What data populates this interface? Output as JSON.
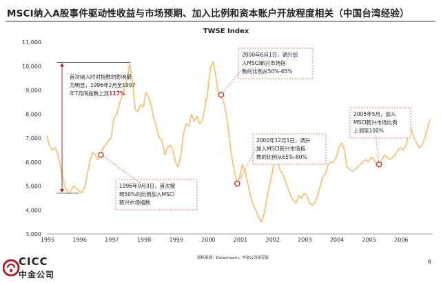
{
  "slide": {
    "title": "MSCI纳入A股事件驱动性收益与市场预期、加入比例和资本账户开放程度相关（中国台湾经验）",
    "source": "资料来源：Datastream，中金公司研究部",
    "page_number": "8"
  },
  "logo": {
    "en": "CICC",
    "zh": "中金公司",
    "accent": "#a5232b"
  },
  "colors": {
    "line": "#f6bf6c",
    "marker": "#c0392b",
    "annotation": "#e8574e",
    "bracket": "#a5232b"
  },
  "chart_data": {
    "type": "line",
    "title": "TWSE Index",
    "xlabel": "",
    "ylabel": "",
    "xlim": [
      1995.0,
      2007.0
    ],
    "ylim": [
      3000,
      11000
    ],
    "yticks": [
      3000,
      4000,
      5000,
      6000,
      7000,
      8000,
      9000,
      10000,
      11000
    ],
    "ytick_labels": [
      "3,000",
      "4,000",
      "5,000",
      "6,000",
      "7,000",
      "8,000",
      "9,000",
      "10,000",
      "11,000"
    ],
    "xticks": [
      1995,
      1996,
      1997,
      1998,
      1999,
      2000,
      2001,
      2002,
      2003,
      2004,
      2005,
      2006
    ],
    "xtick_labels": [
      "1995",
      "1996",
      "1997",
      "1998",
      "1999",
      "2000",
      "2001",
      "2002",
      "2003",
      "2004",
      "2005",
      "2006"
    ],
    "grid": false,
    "series": [
      {
        "x": [
          1995.0,
          1995.08,
          1995.17,
          1995.25,
          1995.33,
          1995.42,
          1995.5,
          1995.58,
          1995.67,
          1995.75,
          1995.83,
          1995.92,
          1996.0,
          1996.08,
          1996.17,
          1996.25,
          1996.33,
          1996.42,
          1996.5,
          1996.58,
          1996.67,
          1996.75,
          1996.83,
          1996.92,
          1997.0,
          1997.08,
          1997.17,
          1997.25,
          1997.33,
          1997.42,
          1997.5,
          1997.58,
          1997.67,
          1997.75,
          1997.83,
          1997.92,
          1998.0,
          1998.08,
          1998.17,
          1998.25,
          1998.33,
          1998.42,
          1998.5,
          1998.58,
          1998.67,
          1998.75,
          1998.83,
          1998.92,
          1999.0,
          1999.08,
          1999.17,
          1999.25,
          1999.33,
          1999.42,
          1999.5,
          1999.58,
          1999.67,
          1999.75,
          1999.83,
          1999.92,
          2000.0,
          2000.08,
          2000.17,
          2000.25,
          2000.33,
          2000.42,
          2000.5,
          2000.58,
          2000.67,
          2000.75,
          2000.83,
          2000.92,
          2001.0,
          2001.08,
          2001.17,
          2001.25,
          2001.33,
          2001.42,
          2001.5,
          2001.58,
          2001.67,
          2001.75,
          2001.83,
          2001.92,
          2002.0,
          2002.08,
          2002.17,
          2002.25,
          2002.33,
          2002.42,
          2002.5,
          2002.58,
          2002.67,
          2002.75,
          2002.83,
          2002.92,
          2003.0,
          2003.08,
          2003.17,
          2003.25,
          2003.33,
          2003.42,
          2003.5,
          2003.58,
          2003.67,
          2003.75,
          2003.83,
          2003.92,
          2004.0,
          2004.08,
          2004.17,
          2004.25,
          2004.33,
          2004.42,
          2004.5,
          2004.58,
          2004.67,
          2004.75,
          2004.83,
          2004.92,
          2005.0,
          2005.08,
          2005.17,
          2005.25,
          2005.33,
          2005.42,
          2005.5,
          2005.58,
          2005.67,
          2005.75,
          2005.83,
          2005.92,
          2006.0,
          2006.08,
          2006.17,
          2006.25,
          2006.33,
          2006.42,
          2006.5,
          2006.58,
          2006.67,
          2006.75,
          2006.83,
          2006.92
        ],
        "y": [
          7100,
          6700,
          6500,
          6600,
          6400,
          5800,
          5300,
          4900,
          4700,
          4800,
          5000,
          4900,
          4800,
          4700,
          4900,
          5400,
          6000,
          6400,
          6300,
          6100,
          6300,
          6600,
          6700,
          6900,
          7000,
          7800,
          8000,
          8400,
          8700,
          9100,
          9500,
          10100,
          9300,
          8200,
          8100,
          8400,
          8300,
          8900,
          8700,
          8300,
          7800,
          7400,
          7000,
          6900,
          6300,
          6600,
          6700,
          6500,
          6000,
          5800,
          6300,
          7200,
          7600,
          7500,
          8000,
          7700,
          7900,
          7600,
          7700,
          8300,
          8900,
          9900,
          10200,
          9600,
          8900,
          8700,
          8500,
          8000,
          7100,
          6200,
          5600,
          5100,
          5400,
          5900,
          5600,
          5100,
          4600,
          4200,
          4000,
          3700,
          3500,
          3800,
          4400,
          5000,
          5500,
          6100,
          6000,
          5700,
          5500,
          5200,
          4900,
          4600,
          4400,
          4300,
          4600,
          4500,
          4700,
          4600,
          4300,
          4200,
          4300,
          4600,
          5000,
          5400,
          5500,
          5900,
          6000,
          6000,
          6200,
          6600,
          6800,
          6500,
          5800,
          5700,
          5600,
          5700,
          5800,
          5900,
          6000,
          6100,
          6000,
          6200,
          6100,
          5900,
          5800,
          6100,
          6300,
          6200,
          6100,
          6200,
          6300,
          6500,
          6600,
          6500,
          6700,
          7100,
          7400,
          7000,
          6800,
          6600,
          6700,
          7000,
          7400,
          7800
        ]
      }
    ],
    "markers": [
      {
        "x": 1996.68,
        "y": 6300
      },
      {
        "x": 2000.42,
        "y": 8800
      },
      {
        "x": 2000.92,
        "y": 5100
      },
      {
        "x": 2005.33,
        "y": 5900
      }
    ],
    "annotations": [
      {
        "id": "bracket",
        "lines": [
          "首次纳入时对指数的影响最",
          "为明显，1996年2月至1997",
          "年7月间指数上涨117%"
        ]
      },
      {
        "id": "a1996",
        "lines": [
          "1996年9月3日，首次按",
          "照50%的比例加入MSCI",
          "新兴市场指数"
        ]
      },
      {
        "id": "a2000a",
        "lines": [
          "2000年6月1日，调升加",
          "入MSCI新兴市场指",
          "数的比例从50%-65%"
        ]
      },
      {
        "id": "a2000b",
        "lines": [
          "2000年12月1日，调升",
          "加入MSCI新兴市场指",
          "数的比例从65%-80%"
        ]
      },
      {
        "id": "a2005",
        "lines": [
          "2005年5月，加入",
          "MSCI新兴市场比例",
          "上调至100%"
        ]
      }
    ],
    "bracket_range": [
      4700,
      10150
    ]
  }
}
